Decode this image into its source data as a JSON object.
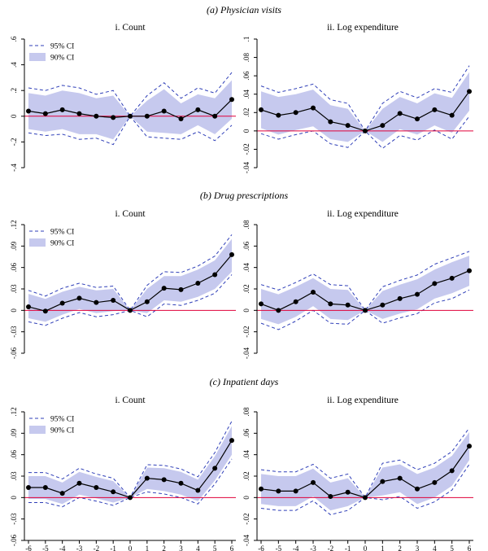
{
  "sections": [
    {
      "title": "(a) Physician visits"
    },
    {
      "title": "(b) Drug prescriptions"
    },
    {
      "title": "(c) Inpatient days"
    }
  ],
  "legend": {
    "ci95": "95% CI",
    "ci90": "90% CI"
  },
  "colors": {
    "band": "#c6c9ee",
    "ci95_line": "#2f3fb8",
    "estimate": "#000000",
    "zero_line": "#e0003a"
  },
  "chart_data": [
    {
      "type": "line",
      "section": 0,
      "title": "i. Count",
      "x": [
        -6,
        -5,
        -4,
        -3,
        -2,
        -1,
        0,
        1,
        2,
        3,
        4,
        5,
        6
      ],
      "x_ticks": [
        "-6",
        "-5",
        "-4",
        "-3",
        "-2",
        "-1",
        "0",
        "1",
        "2",
        "3",
        "4",
        "5",
        "6"
      ],
      "ylim": [
        -0.4,
        0.6
      ],
      "y_ticks": [
        {
          "v": -0.4,
          "label": "-.4"
        },
        {
          "v": -0.2,
          "label": "-.2"
        },
        {
          "v": 0,
          "label": "0"
        },
        {
          "v": 0.2,
          "label": ".2"
        },
        {
          "v": 0.4,
          "label": ".4"
        },
        {
          "v": 0.6,
          "label": ".6"
        }
      ],
      "estimate": [
        0.04,
        0.02,
        0.05,
        0.02,
        0.0,
        -0.01,
        0.0,
        0.0,
        0.04,
        -0.02,
        0.05,
        0.0,
        0.13
      ],
      "ci90_upper": [
        0.18,
        0.16,
        0.2,
        0.18,
        0.14,
        0.16,
        0.0,
        0.12,
        0.21,
        0.1,
        0.17,
        0.14,
        0.28
      ],
      "ci90_lower": [
        -0.1,
        -0.12,
        -0.1,
        -0.14,
        -0.14,
        -0.18,
        0.0,
        -0.12,
        -0.13,
        -0.14,
        -0.07,
        -0.14,
        -0.02
      ],
      "ci95_upper": [
        0.22,
        0.2,
        0.24,
        0.22,
        0.17,
        0.2,
        0.0,
        0.16,
        0.26,
        0.14,
        0.22,
        0.18,
        0.34
      ],
      "ci95_lower": [
        -0.13,
        -0.15,
        -0.14,
        -0.18,
        -0.17,
        -0.22,
        0.0,
        -0.16,
        -0.17,
        -0.18,
        -0.12,
        -0.19,
        -0.07
      ],
      "legend": true
    },
    {
      "type": "line",
      "section": 0,
      "title": "ii. Log expenditure",
      "x": [
        -6,
        -5,
        -4,
        -3,
        -2,
        -1,
        0,
        1,
        2,
        3,
        4,
        5,
        6
      ],
      "x_ticks": [
        "-6",
        "-5",
        "-4",
        "-3",
        "-2",
        "-1",
        "0",
        "1",
        "2",
        "3",
        "4",
        "5",
        "6"
      ],
      "ylim": [
        -0.04,
        0.1
      ],
      "y_ticks": [
        {
          "v": -0.04,
          "label": "-.04"
        },
        {
          "v": -0.02,
          "label": "-.02"
        },
        {
          "v": 0,
          "label": "0"
        },
        {
          "v": 0.02,
          "label": ".02"
        },
        {
          "v": 0.04,
          "label": ".04"
        },
        {
          "v": 0.06,
          "label": ".06"
        },
        {
          "v": 0.08,
          "label": ".08"
        },
        {
          "v": 0.1,
          "label": ".1"
        }
      ],
      "estimate": [
        0.023,
        0.017,
        0.02,
        0.025,
        0.01,
        0.006,
        0.0,
        0.006,
        0.019,
        0.013,
        0.023,
        0.017,
        0.043
      ],
      "ci90_upper": [
        0.043,
        0.037,
        0.04,
        0.045,
        0.028,
        0.024,
        0.0,
        0.024,
        0.037,
        0.03,
        0.041,
        0.036,
        0.064
      ],
      "ci90_lower": [
        0.003,
        -0.004,
        0.001,
        0.005,
        -0.009,
        -0.012,
        0.0,
        -0.012,
        0.002,
        -0.004,
        0.006,
        -0.002,
        0.022
      ],
      "ci95_upper": [
        0.049,
        0.042,
        0.046,
        0.051,
        0.034,
        0.03,
        0.0,
        0.03,
        0.043,
        0.036,
        0.046,
        0.042,
        0.071
      ],
      "ci95_lower": [
        -0.003,
        -0.009,
        -0.004,
        0.0,
        -0.014,
        -0.018,
        0.0,
        -0.019,
        -0.005,
        -0.01,
        0.001,
        -0.009,
        0.016
      ],
      "legend": false
    },
    {
      "type": "line",
      "section": 1,
      "title": "i. Count",
      "x": [
        -6,
        -5,
        -4,
        -3,
        -2,
        -1,
        0,
        1,
        2,
        3,
        4,
        5,
        6
      ],
      "x_ticks": [
        "-6",
        "-5",
        "-4",
        "-3",
        "-2",
        "-1",
        "0",
        "1",
        "2",
        "3",
        "4",
        "5",
        "6"
      ],
      "ylim": [
        -0.06,
        0.12
      ],
      "y_ticks": [
        {
          "v": -0.06,
          "label": "-.06"
        },
        {
          "v": -0.03,
          "label": "-.03"
        },
        {
          "v": 0,
          "label": "0"
        },
        {
          "v": 0.03,
          "label": ".03"
        },
        {
          "v": 0.06,
          "label": ".06"
        },
        {
          "v": 0.09,
          "label": ".09"
        },
        {
          "v": 0.12,
          "label": ".12"
        }
      ],
      "estimate": [
        0.005,
        -0.001,
        0.01,
        0.017,
        0.011,
        0.014,
        0.0,
        0.012,
        0.031,
        0.029,
        0.038,
        0.05,
        0.078
      ],
      "ci90_upper": [
        0.023,
        0.016,
        0.026,
        0.033,
        0.028,
        0.03,
        0.0,
        0.03,
        0.048,
        0.048,
        0.057,
        0.07,
        0.1
      ],
      "ci90_lower": [
        -0.011,
        -0.016,
        -0.006,
        0.002,
        -0.004,
        -0.001,
        0.0,
        -0.004,
        0.014,
        0.012,
        0.019,
        0.03,
        0.054
      ],
      "ci95_upper": [
        0.028,
        0.02,
        0.031,
        0.038,
        0.032,
        0.034,
        0.0,
        0.035,
        0.054,
        0.053,
        0.062,
        0.076,
        0.106
      ],
      "ci95_lower": [
        -0.016,
        -0.021,
        -0.011,
        -0.003,
        -0.009,
        -0.006,
        0.0,
        -0.009,
        0.009,
        0.007,
        0.014,
        0.024,
        0.05
      ],
      "legend": true
    },
    {
      "type": "line",
      "section": 1,
      "title": "ii. Log expenditure",
      "x": [
        -6,
        -5,
        -4,
        -3,
        -2,
        -1,
        0,
        1,
        2,
        3,
        4,
        5,
        6
      ],
      "x_ticks": [
        "-6",
        "-5",
        "-4",
        "-3",
        "-2",
        "-1",
        "0",
        "1",
        "2",
        "3",
        "4",
        "5",
        "6"
      ],
      "ylim": [
        -0.04,
        0.08
      ],
      "y_ticks": [
        {
          "v": -0.04,
          "label": "-.04"
        },
        {
          "v": -0.02,
          "label": "-.02"
        },
        {
          "v": 0,
          "label": "0"
        },
        {
          "v": 0.02,
          "label": ".02"
        },
        {
          "v": 0.04,
          "label": ".04"
        },
        {
          "v": 0.06,
          "label": ".06"
        },
        {
          "v": 0.08,
          "label": ".08"
        }
      ],
      "estimate": [
        0.006,
        0.0,
        0.008,
        0.017,
        0.006,
        0.005,
        0.0,
        0.005,
        0.011,
        0.015,
        0.025,
        0.03,
        0.037
      ],
      "ci90_upper": [
        0.02,
        0.015,
        0.022,
        0.03,
        0.02,
        0.019,
        0.0,
        0.018,
        0.024,
        0.029,
        0.038,
        0.045,
        0.051
      ],
      "ci90_lower": [
        -0.008,
        -0.013,
        -0.006,
        0.004,
        -0.008,
        -0.009,
        0.0,
        -0.008,
        -0.003,
        0.001,
        0.011,
        0.016,
        0.023
      ],
      "ci95_upper": [
        0.024,
        0.019,
        0.026,
        0.034,
        0.024,
        0.023,
        0.0,
        0.022,
        0.028,
        0.033,
        0.043,
        0.049,
        0.055
      ],
      "ci95_lower": [
        -0.012,
        -0.018,
        -0.01,
        0.0,
        -0.012,
        -0.013,
        0.0,
        -0.012,
        -0.007,
        -0.003,
        0.007,
        0.011,
        0.019
      ],
      "legend": false
    },
    {
      "type": "line",
      "section": 2,
      "title": "i. Count",
      "x": [
        -6,
        -5,
        -4,
        -3,
        -2,
        -1,
        0,
        1,
        2,
        3,
        4,
        5,
        6
      ],
      "x_ticks": [
        "-6",
        "-5",
        "-4",
        "-3",
        "-2",
        "-1",
        "0",
        "1",
        "2",
        "3",
        "4",
        "5",
        "6"
      ],
      "ylim": [
        -0.06,
        0.12
      ],
      "y_ticks": [
        {
          "v": -0.06,
          "label": "-.06"
        },
        {
          "v": -0.03,
          "label": "-.03"
        },
        {
          "v": 0,
          "label": "0"
        },
        {
          "v": 0.03,
          "label": ".03"
        },
        {
          "v": 0.06,
          "label": ".06"
        },
        {
          "v": 0.09,
          "label": ".09"
        },
        {
          "v": 0.12,
          "label": ".12"
        }
      ],
      "estimate": [
        0.014,
        0.014,
        0.006,
        0.02,
        0.014,
        0.008,
        0.0,
        0.027,
        0.025,
        0.02,
        0.01,
        0.041,
        0.08
      ],
      "ci90_upper": [
        0.03,
        0.03,
        0.021,
        0.036,
        0.029,
        0.023,
        0.0,
        0.042,
        0.041,
        0.036,
        0.025,
        0.058,
        0.1
      ],
      "ci90_lower": [
        -0.002,
        -0.002,
        -0.009,
        0.004,
        -0.001,
        -0.007,
        0.0,
        0.012,
        0.009,
        0.004,
        -0.005,
        0.024,
        0.06
      ],
      "ci95_upper": [
        0.035,
        0.035,
        0.026,
        0.041,
        0.033,
        0.027,
        0.0,
        0.046,
        0.045,
        0.04,
        0.029,
        0.063,
        0.107
      ],
      "ci95_lower": [
        -0.007,
        -0.007,
        -0.013,
        0.0,
        -0.005,
        -0.011,
        0.0,
        0.008,
        0.005,
        0.0,
        -0.009,
        0.019,
        0.054
      ],
      "legend": true
    },
    {
      "type": "line",
      "section": 2,
      "title": "ii. Log expenditure",
      "x": [
        -6,
        -5,
        -4,
        -3,
        -2,
        -1,
        0,
        1,
        2,
        3,
        4,
        5,
        6
      ],
      "x_ticks": [
        "-6",
        "-5",
        "-4",
        "-3",
        "-2",
        "-1",
        "0",
        "1",
        "2",
        "3",
        "4",
        "5",
        "6"
      ],
      "ylim": [
        -0.04,
        0.08
      ],
      "y_ticks": [
        {
          "v": -0.04,
          "label": "-.04"
        },
        {
          "v": -0.02,
          "label": "-.02"
        },
        {
          "v": 0,
          "label": "0"
        },
        {
          "v": 0.02,
          "label": ".02"
        },
        {
          "v": 0.04,
          "label": ".04"
        },
        {
          "v": 0.06,
          "label": ".06"
        },
        {
          "v": 0.08,
          "label": ".08"
        }
      ],
      "estimate": [
        0.008,
        0.006,
        0.006,
        0.014,
        0.001,
        0.005,
        0.0,
        0.015,
        0.018,
        0.008,
        0.014,
        0.025,
        0.048
      ],
      "ci90_upper": [
        0.022,
        0.02,
        0.02,
        0.027,
        0.014,
        0.018,
        0.0,
        0.028,
        0.031,
        0.022,
        0.028,
        0.039,
        0.061
      ],
      "ci90_lower": [
        -0.006,
        -0.008,
        -0.008,
        0.001,
        -0.012,
        -0.008,
        0.0,
        0.002,
        0.005,
        -0.006,
        0.0,
        0.011,
        0.035
      ],
      "ci95_upper": [
        0.026,
        0.024,
        0.024,
        0.031,
        0.018,
        0.022,
        0.0,
        0.032,
        0.035,
        0.026,
        0.032,
        0.043,
        0.065
      ],
      "ci95_lower": [
        -0.01,
        -0.012,
        -0.012,
        -0.003,
        -0.016,
        -0.012,
        0.0,
        -0.002,
        0.001,
        -0.01,
        -0.004,
        0.007,
        0.031
      ],
      "legend": false
    }
  ]
}
